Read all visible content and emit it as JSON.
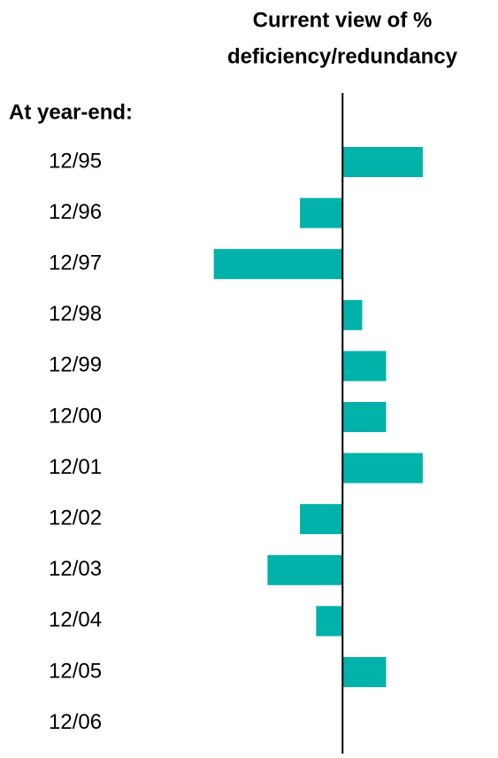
{
  "chart_data": {
    "type": "hbar",
    "title": [
      "Current view of %",
      "deficiency/redundancy"
    ],
    "row_header": "At year-end:",
    "categories": [
      "12/95",
      "12/96",
      "12/97",
      "12/98",
      "12/99",
      "12/00",
      "12/01",
      "12/02",
      "12/03",
      "12/04",
      "12/05",
      "12/06"
    ],
    "values": [
      9.4,
      -5,
      -15.1,
      2.3,
      5.1,
      5.1,
      9.4,
      -5,
      -8.8,
      -3.1,
      5.1,
      null
    ],
    "color": "#00b2a9",
    "xlim": [
      -16,
      12
    ]
  }
}
